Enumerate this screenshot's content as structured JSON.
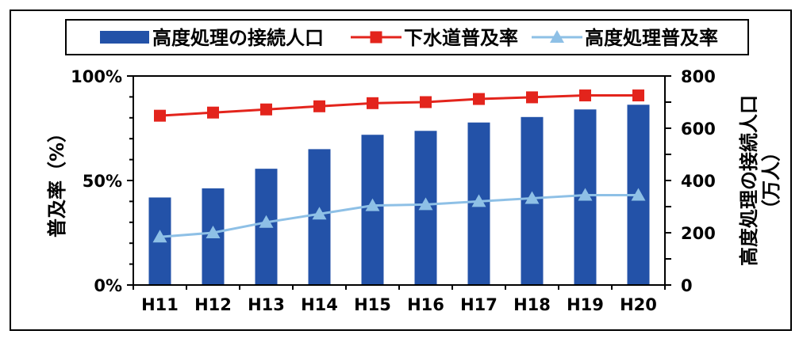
{
  "chart_data": {
    "type": "bar",
    "categories": [
      "H11",
      "H12",
      "H13",
      "H14",
      "H15",
      "H16",
      "H17",
      "H18",
      "H19",
      "H20"
    ],
    "series": [
      {
        "name": "高度処理の接続人口",
        "kind": "bar",
        "axis": "right",
        "color": "#2352a8",
        "values": [
          335,
          370,
          445,
          520,
          575,
          590,
          622,
          643,
          672,
          690
        ]
      },
      {
        "name": "下水道普及率",
        "kind": "line",
        "axis": "left",
        "color": "#e3241c",
        "marker": "square",
        "values": [
          81,
          82.5,
          84,
          85.5,
          87,
          87.5,
          89,
          89.8,
          90.7,
          90.7
        ]
      },
      {
        "name": "高度処理普及率",
        "kind": "line",
        "axis": "left",
        "color": "#8ec0e6",
        "marker": "triangle",
        "values": [
          23,
          25,
          30,
          34,
          38,
          38.5,
          40,
          41.5,
          43,
          43
        ]
      }
    ],
    "y_left": {
      "label": "普及率（%）",
      "range": [
        0,
        100
      ],
      "tick_labels": [
        "0%",
        "50%",
        "100%"
      ]
    },
    "y_right": {
      "label_line1": "高度処理の接続人口",
      "label_line2": "（万人）",
      "range": [
        0,
        800
      ],
      "tick_labels": [
        "0",
        "200",
        "400",
        "600",
        "800"
      ]
    },
    "legend_position": "top",
    "grid": false
  }
}
